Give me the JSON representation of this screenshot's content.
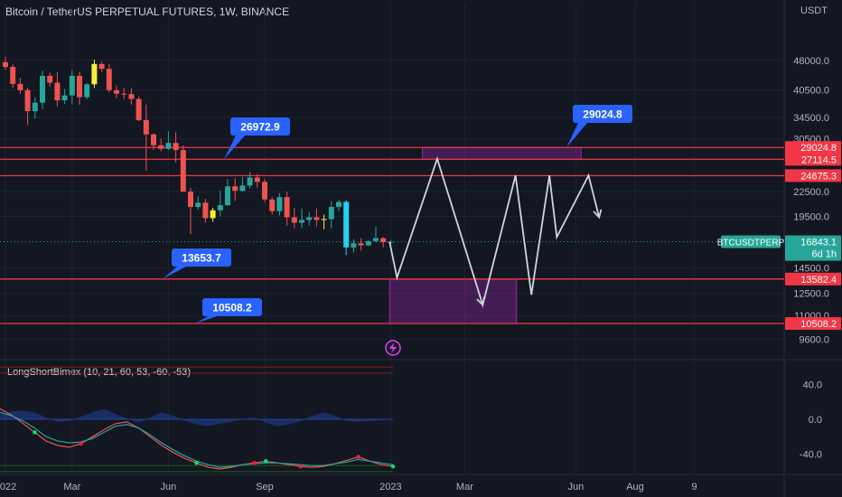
{
  "header": {
    "title": "Bitcoin / TetherUS PERPETUAL FUTURES, 1W, BINANCE"
  },
  "price_axis": {
    "unit": "USDT"
  },
  "indicator": {
    "title": "LongShortBimex (10, 21, 60, 53, -60, -53)"
  },
  "colors": {
    "background": "#131722",
    "up": "#26a69a",
    "down": "#ef5350",
    "level_line": "#f23645",
    "callout": "#2962ff",
    "zone": "#9c27b0",
    "projection": "#d1d4dc",
    "highlight": "#ffeb3b",
    "cyan": "#22d1ee"
  },
  "chart_data": [
    {
      "type": "candlestick",
      "title": "Bitcoin / TetherUS PERPETUAL FUTURES, 1W, BINANCE",
      "y_scale": "log",
      "ylim": [
        8800,
        60000
      ],
      "y_ticks": [
        48000.0,
        40500.0,
        34500.0,
        30500.0,
        22500.0,
        19500.0,
        14500.0,
        12500.0,
        11000.0,
        9600.0
      ],
      "x_ticks": [
        "2022",
        "Mar",
        "Jun",
        "Sep",
        "2023",
        "Mar",
        "Jun",
        "Aug",
        "9"
      ],
      "series": [
        {
          "ohlc": [
            [
              47500,
              49000,
              45500,
              46200
            ],
            [
              46200,
              46900,
              41000,
              41900
            ],
            [
              41900,
              43400,
              39600,
              40400
            ],
            [
              40400,
              41000,
              33000,
              35800
            ],
            [
              35800,
              38800,
              34300,
              37600
            ],
            [
              37600,
              45200,
              36200,
              43900
            ],
            [
              43900,
              44700,
              41200,
              42200
            ],
            [
              42200,
              44800,
              36800,
              38100
            ],
            [
              38100,
              40700,
              37300,
              39200
            ],
            [
              39200,
              45400,
              37200,
              43900
            ],
            [
              43900,
              44900,
              37100,
              38800
            ],
            [
              38800,
              42100,
              38400,
              41800
            ],
            [
              41800,
              48200,
              40900,
              47000
            ],
            [
              47000,
              47600,
              44900,
              45700
            ],
            [
              45700,
              47000,
              39900,
              40400
            ],
            [
              40400,
              41500,
              38600,
              39600
            ],
            [
              39600,
              41000,
              38400,
              39500
            ],
            [
              39500,
              40900,
              37200,
              38400
            ],
            [
              38400,
              39000,
              33800,
              34000
            ],
            [
              34000,
              37200,
              25400,
              31300
            ],
            [
              31300,
              31500,
              28600,
              29400
            ],
            [
              29400,
              30600,
              28400,
              28800
            ],
            [
              28800,
              31900,
              28600,
              29800
            ],
            [
              29800,
              31700,
              26600,
              28600
            ],
            [
              28600,
              29400,
              22500,
              22500
            ],
            [
              22500,
              23000,
              17600,
              20600
            ],
            [
              20600,
              21900,
              20300,
              21100
            ],
            [
              21100,
              21600,
              18800,
              19300
            ],
            [
              19300,
              20500,
              18900,
              20200
            ],
            [
              20200,
              22600,
              19500,
              20800
            ],
            [
              20800,
              24200,
              20700,
              23200
            ],
            [
              23200,
              24300,
              21300,
              22600
            ],
            [
              22600,
              24500,
              22500,
              23300
            ],
            [
              23300,
              25200,
              22900,
              24400
            ],
            [
              24400,
              24900,
              23000,
              23800
            ],
            [
              23800,
              24200,
              21200,
              21500
            ],
            [
              21500,
              21800,
              19700,
              20100
            ],
            [
              20100,
              22300,
              19600,
              21800
            ],
            [
              21800,
              22500,
              18500,
              19400
            ],
            [
              19400,
              20500,
              18200,
              18800
            ],
            [
              18800,
              20400,
              18200,
              19100
            ],
            [
              19100,
              20000,
              18500,
              19400
            ],
            [
              19400,
              20400,
              18400,
              19100
            ],
            [
              19100,
              19700,
              18100,
              19200
            ],
            [
              19200,
              21300,
              18200,
              20600
            ],
            [
              20600,
              21500,
              20100,
              21200
            ],
            [
              21200,
              21400,
              15600,
              16300
            ],
            [
              16300,
              17100,
              15800,
              16700
            ],
            [
              16700,
              17200,
              16000,
              16500
            ],
            [
              16500,
              17000,
              16400,
              16900
            ],
            [
              16900,
              18400,
              16800,
              17200
            ],
            [
              17200,
              17300,
              16300,
              16800
            ],
            [
              16800,
              17000,
              16500,
              16843
            ]
          ]
        }
      ],
      "annotations": {
        "horizontal_levels": [
          29024.8,
          27114.5,
          24675.3,
          13582.4,
          10508.2
        ],
        "callouts": [
          "26972.9",
          "29024.8",
          "13653.7",
          "10508.2"
        ],
        "current_price": {
          "symbol": "BTCUSDTPERP",
          "value": "16843.1",
          "countdown": "6d 1h"
        },
        "zones": [
          {
            "from": 27114.5,
            "to": 29024.8,
            "x_from": "2023-02",
            "x_to": "2023-07"
          },
          {
            "from": 10508.2,
            "to": 13582.4,
            "x_from": "2023-01",
            "x_to": "2023-05"
          }
        ],
        "projection_path": [
          [
            "2023-01-01",
            16843
          ],
          [
            "2023-01-08",
            13700
          ],
          [
            "2023-02-15",
            27200
          ],
          [
            "2023-03-30",
            11700
          ],
          [
            "2023-04-30",
            24700
          ],
          [
            "2023-05-15",
            12400
          ],
          [
            "2023-06-01",
            24700
          ],
          [
            "2023-06-08",
            17300
          ],
          [
            "2023-07-08",
            24700
          ],
          [
            "2023-07-18",
            19400
          ]
        ]
      }
    },
    {
      "type": "line",
      "title": "LongShortBimex (10, 21, 60, 53, -60, -53)",
      "ylim": [
        -58,
        58
      ],
      "y_ticks": [
        40.0,
        0.0,
        -40.0
      ],
      "reference_levels": [
        60,
        53,
        0,
        -53,
        -60
      ],
      "series": [
        {
          "values": [
            12,
            5,
            -5,
            -15,
            -25,
            -30,
            -32,
            -28,
            -20,
            -12,
            -5,
            -3,
            -10,
            -20,
            -30,
            -38,
            -45,
            -50,
            -55,
            -57,
            -55,
            -52,
            -50,
            -48,
            -50,
            -52,
            -54,
            -55,
            -54,
            -51,
            -47,
            -43,
            -48,
            -52,
            -54
          ]
        },
        {
          "values": [
            8,
            4,
            -2,
            -10,
            -20,
            -25,
            -27,
            -26,
            -22,
            -15,
            -8,
            -6,
            -10,
            -18,
            -27,
            -35,
            -42,
            -48,
            -52,
            -55,
            -54,
            -52,
            -51,
            -50,
            -50,
            -51,
            -52,
            -53,
            -53,
            -51,
            -49,
            -46,
            -48,
            -50,
            -52
          ]
        },
        {
          "values": [
            6,
            9,
            10,
            8,
            2,
            -3,
            -2,
            3,
            8,
            12,
            6,
            1,
            -4,
            2,
            8,
            4,
            -2,
            -6,
            -8,
            -5,
            -3,
            0,
            2,
            -4,
            -8,
            -6,
            -2,
            4,
            8,
            4,
            -2,
            -3,
            -2,
            -1,
            0
          ]
        }
      ]
    }
  ]
}
